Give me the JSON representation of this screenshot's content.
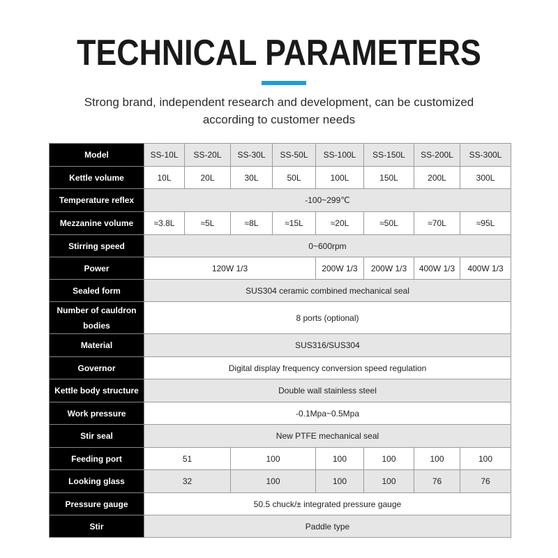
{
  "header": {
    "title": "TECHNICAL PARAMETERS",
    "subtitle_line1": "Strong brand, independent research and development, can be customized",
    "subtitle_line2": "according to customer needs",
    "accent_color": "#1a9de2"
  },
  "table": {
    "rows": [
      {
        "label": "Model",
        "cells": [
          {
            "t": "SS-10L"
          },
          {
            "t": "SS-20L"
          },
          {
            "t": "SS-30L"
          },
          {
            "t": "SS-50L"
          },
          {
            "t": "SS-100L"
          },
          {
            "t": "SS-150L"
          },
          {
            "t": "SS-200L"
          },
          {
            "t": "SS-300L"
          }
        ]
      },
      {
        "label": "Kettle volume",
        "cells": [
          {
            "t": "10L"
          },
          {
            "t": "20L"
          },
          {
            "t": "30L"
          },
          {
            "t": "50L"
          },
          {
            "t": "100L"
          },
          {
            "t": "150L"
          },
          {
            "t": "200L"
          },
          {
            "t": "300L"
          }
        ]
      },
      {
        "label": "Temperature reflex",
        "cells": [
          {
            "t": "-100~299℃",
            "span": 8
          }
        ]
      },
      {
        "label": "Mezzanine volume",
        "cells": [
          {
            "t": "≈3.8L"
          },
          {
            "t": "≈5L"
          },
          {
            "t": "≈8L"
          },
          {
            "t": "≈15L"
          },
          {
            "t": "≈20L"
          },
          {
            "t": "≈50L"
          },
          {
            "t": "≈70L"
          },
          {
            "t": "≈95L"
          }
        ]
      },
      {
        "label": "Stirring speed",
        "cells": [
          {
            "t": "0~600rpm",
            "span": 8
          }
        ]
      },
      {
        "label": "Power",
        "cells": [
          {
            "t": "120W 1/3",
            "span": 4
          },
          {
            "t": "200W 1/3"
          },
          {
            "t": "200W 1/3"
          },
          {
            "t": "400W 1/3"
          },
          {
            "t": "400W 1/3"
          }
        ]
      },
      {
        "label": "Sealed form",
        "cells": [
          {
            "t": "SUS304 ceramic combined mechanical seal",
            "span": 8
          }
        ]
      },
      {
        "label": "Number of cauldron bodies",
        "cells": [
          {
            "t": "8 ports (optional)",
            "span": 8
          }
        ]
      },
      {
        "label": "Material",
        "cells": [
          {
            "t": "SUS316/SUS304",
            "span": 8
          }
        ]
      },
      {
        "label": "Governor",
        "cells": [
          {
            "t": "Digital display frequency conversion speed regulation",
            "span": 8
          }
        ]
      },
      {
        "label": "Kettle body structure",
        "cells": [
          {
            "t": "Double wall stainless steel",
            "span": 8
          }
        ]
      },
      {
        "label": "Work pressure",
        "cells": [
          {
            "t": "-0.1Mpa~0.5Mpa",
            "span": 8
          }
        ]
      },
      {
        "label": "Stir seal",
        "cells": [
          {
            "t": "New PTFE mechanical seal",
            "span": 8
          }
        ]
      },
      {
        "label": "Feeding port",
        "cells": [
          {
            "t": "51",
            "span": 2
          },
          {
            "t": "100",
            "span": 2
          },
          {
            "t": "100"
          },
          {
            "t": "100"
          },
          {
            "t": "100"
          },
          {
            "t": "100"
          }
        ]
      },
      {
        "label": "Looking glass",
        "cells": [
          {
            "t": "32",
            "span": 2
          },
          {
            "t": "100",
            "span": 2
          },
          {
            "t": "100"
          },
          {
            "t": "100"
          },
          {
            "t": "76"
          },
          {
            "t": "76"
          }
        ]
      },
      {
        "label": "Pressure gauge",
        "cells": [
          {
            "t": "50.5 chuck/±  integrated pressure gauge",
            "span": 8
          }
        ]
      },
      {
        "label": "Stir",
        "cells": [
          {
            "t": "Paddle type",
            "span": 8
          }
        ]
      }
    ]
  }
}
